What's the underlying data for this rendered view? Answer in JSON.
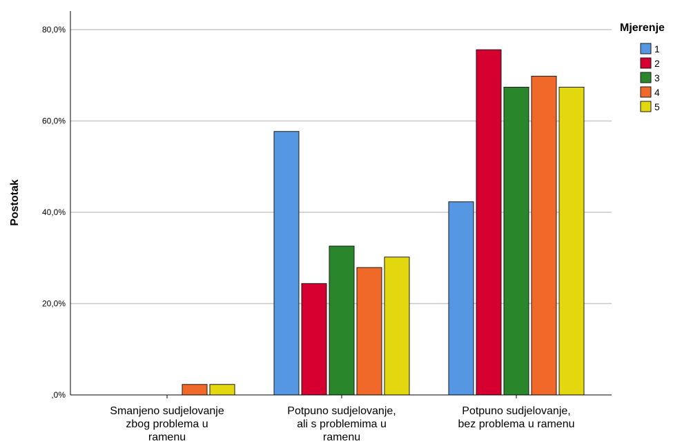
{
  "chart_data": {
    "type": "bar",
    "ylabel": "Postotak",
    "ylim": [
      0,
      80
    ],
    "yticks": [
      "0",
      "20",
      "40",
      "60",
      "80"
    ],
    "ytick_labels": [
      ",0%",
      "20,0%",
      "40,0%",
      "60,0%",
      "80,0%"
    ],
    "grid": "horizontal",
    "categories": [
      [
        "Smanjeno sudjelovanje",
        "zbog problema u",
        "ramenu"
      ],
      [
        "Potpuno sudjelovanje,",
        "ali s problemima u",
        "ramenu"
      ],
      [
        "Potpuno sudjelovanje,",
        "bez problema u ramenu"
      ]
    ],
    "legend": {
      "title": "Mjerenje",
      "position": "right"
    },
    "series": [
      {
        "name": "1",
        "color": "#5597e3",
        "values": [
          0,
          57.7,
          42.3
        ]
      },
      {
        "name": "2",
        "color": "#d5002f",
        "values": [
          0,
          24.4,
          75.6
        ]
      },
      {
        "name": "3",
        "color": "#2a862a",
        "values": [
          0,
          32.6,
          67.4
        ]
      },
      {
        "name": "4",
        "color": "#f06928",
        "values": [
          2.3,
          27.9,
          69.8
        ]
      },
      {
        "name": "5",
        "color": "#e3d80f",
        "values": [
          2.3,
          30.2,
          67.4
        ]
      }
    ]
  }
}
